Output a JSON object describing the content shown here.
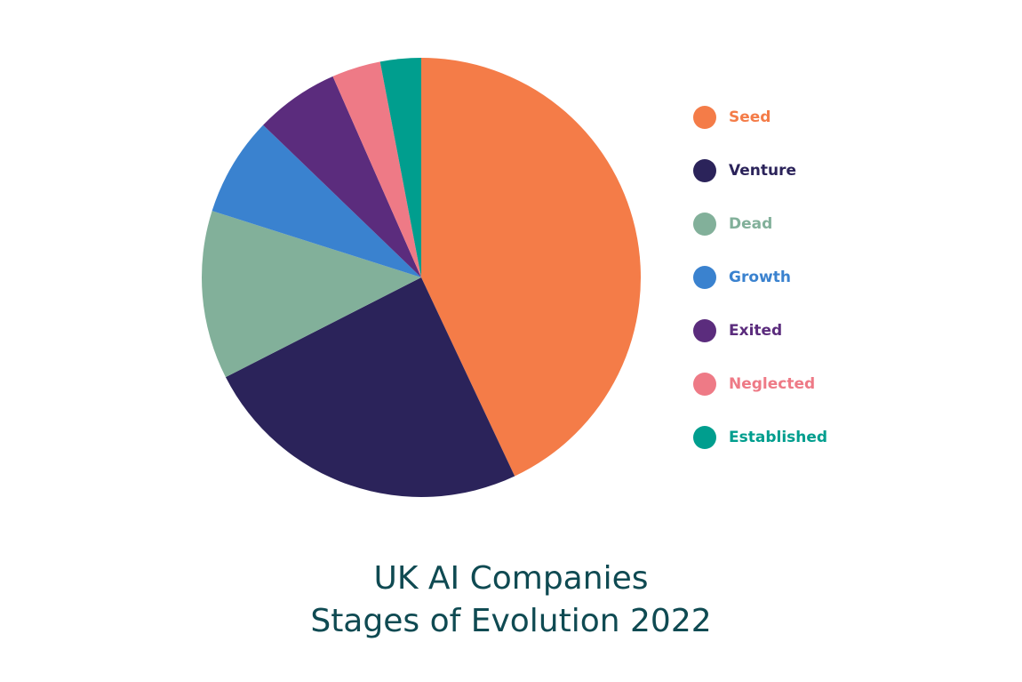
{
  "chart_data": {
    "type": "pie",
    "title": [
      "UK AI Companies",
      "Stages of Evolution 2022"
    ],
    "categories": [
      "Seed",
      "Venture",
      "Dead",
      "Growth",
      "Exited",
      "Neglected",
      "Established"
    ],
    "values": [
      43,
      24.5,
      12.4,
      7.3,
      6.2,
      3.6,
      3
    ],
    "colors": [
      "#f47c48",
      "#2b235a",
      "#82b09a",
      "#3a82cf",
      "#5b2c7d",
      "#ee7a86",
      "#009e8e"
    ],
    "legend": "right"
  }
}
